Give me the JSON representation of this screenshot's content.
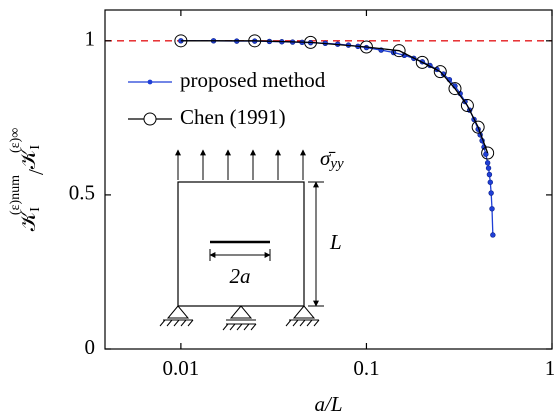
{
  "chart_data": {
    "type": "line",
    "xlabel": "a/L",
    "ylabel_parts": [
      "𝒦",
      "I",
      "(ε)num",
      "/",
      "𝒦",
      "I",
      "(ε)∞"
    ],
    "xscale": "log",
    "xlim": [
      0.0039,
      1
    ],
    "ylim": [
      0,
      1.1
    ],
    "xticks": [
      0.01,
      0.1,
      1
    ],
    "yticks": [
      0,
      0.5,
      1
    ],
    "reference_line": {
      "y": 1,
      "color": "#e41a1c"
    },
    "legend": "upper left",
    "series": [
      {
        "name": "proposed method",
        "color": "#1f3fd6",
        "marker": "dot",
        "x": [
          0.01,
          0.015,
          0.02,
          0.025,
          0.03,
          0.035,
          0.04,
          0.045,
          0.05,
          0.06,
          0.07,
          0.08,
          0.09,
          0.1,
          0.12,
          0.14,
          0.16,
          0.18,
          0.2,
          0.22,
          0.24,
          0.26,
          0.28,
          0.3,
          0.32,
          0.34,
          0.36,
          0.38,
          0.4,
          0.41,
          0.42,
          0.43,
          0.44,
          0.45,
          0.455,
          0.46,
          0.465,
          0.47,
          0.475,
          0.48
        ],
        "values": [
          1.0,
          1.0,
          0.999,
          0.999,
          0.998,
          0.997,
          0.996,
          0.995,
          0.994,
          0.992,
          0.989,
          0.986,
          0.982,
          0.978,
          0.97,
          0.962,
          0.953,
          0.943,
          0.932,
          0.92,
          0.907,
          0.892,
          0.874,
          0.853,
          0.829,
          0.803,
          0.775,
          0.745,
          0.713,
          0.695,
          0.676,
          0.655,
          0.632,
          0.604,
          0.587,
          0.566,
          0.541,
          0.506,
          0.455,
          0.37
        ]
      },
      {
        "name": "Chen (1991)",
        "color": "#000000",
        "marker": "circle",
        "x": [
          0.01,
          0.025,
          0.05,
          0.1,
          0.15,
          0.2,
          0.25,
          0.3,
          0.35,
          0.4,
          0.45
        ],
        "values": [
          1.0,
          1.0,
          0.995,
          0.98,
          0.968,
          0.93,
          0.9,
          0.845,
          0.79,
          0.72,
          0.636
        ]
      }
    ],
    "annotations": {
      "load": "σ̄",
      "load_sub": "yy",
      "height": "L",
      "crack": "2a"
    }
  }
}
